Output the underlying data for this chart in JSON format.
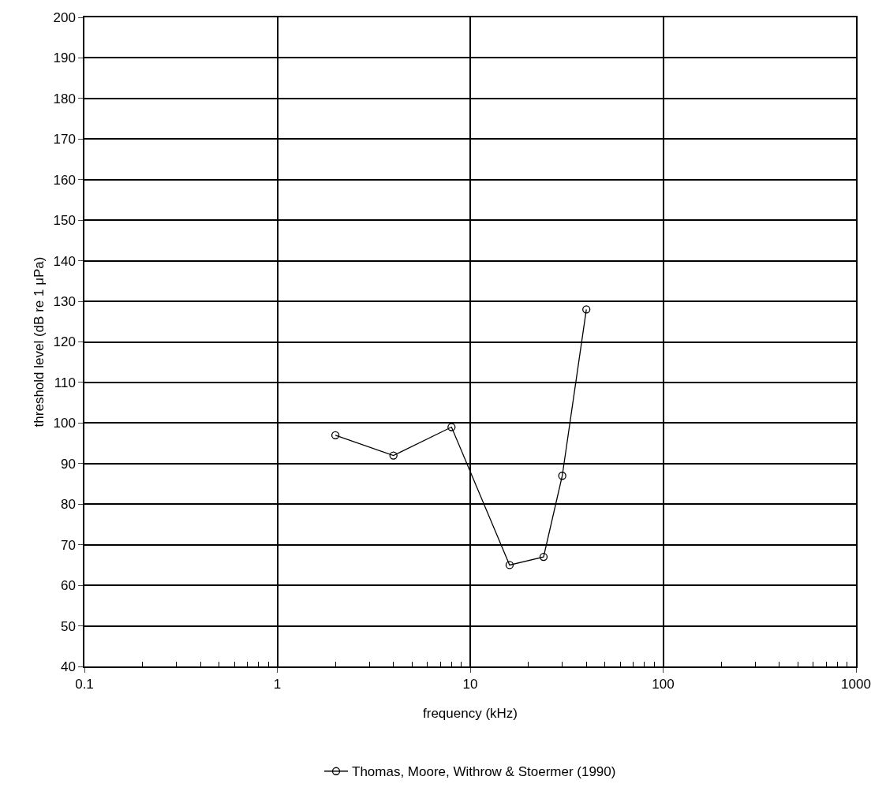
{
  "chart_data": {
    "type": "line",
    "xlabel": "frequency (kHz)",
    "ylabel": "threshold level (dB re 1 μPa)",
    "log": "x",
    "series": [
      {
        "name": "Thomas, Moore, Withrow & Stoermer (1990)",
        "color": "#000000",
        "x": [
          2,
          4,
          8,
          16,
          24,
          30,
          40
        ],
        "values": [
          97,
          92,
          99,
          65,
          67,
          87,
          128
        ]
      }
    ],
    "xlim": [
      0.1,
      1000
    ],
    "xticks": [
      0.1,
      1,
      10,
      100,
      1000
    ],
    "ylim": [
      40,
      200
    ],
    "yticks": [
      40,
      50,
      60,
      70,
      80,
      90,
      100,
      110,
      120,
      130,
      140,
      150,
      160,
      170,
      180,
      190,
      200
    ],
    "grid": true,
    "legend": "bottom",
    "marker": "circle",
    "line_style": "solid"
  }
}
